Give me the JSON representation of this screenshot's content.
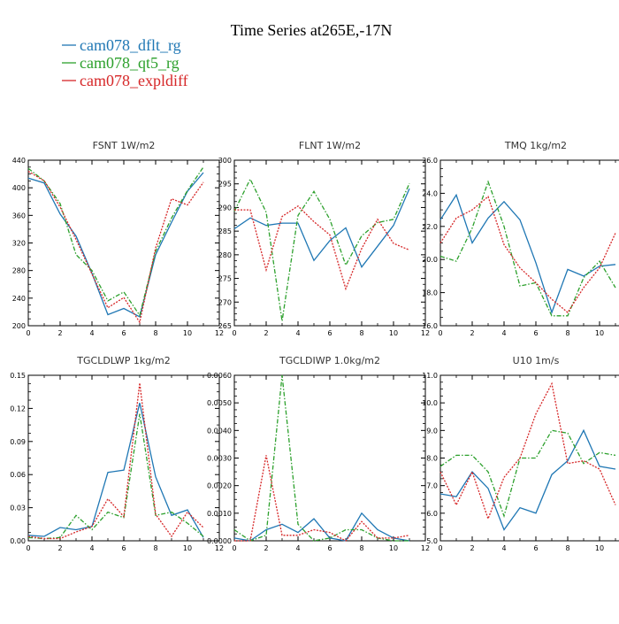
{
  "title": "Time Series at265E,-17N",
  "legend": [
    {
      "label": "cam078_dflt_rg",
      "color": "#1f77b4"
    },
    {
      "label": "cam078_qt5_rg",
      "color": "#2ca02c"
    },
    {
      "label": "cam078_expldiff",
      "color": "#d62728"
    }
  ],
  "chart_data": [
    {
      "type": "line",
      "title": "FSNT   1W/m2",
      "x": [
        0,
        1,
        2,
        3,
        4,
        5,
        6,
        7,
        8,
        9,
        10,
        11
      ],
      "xlim": [
        0,
        12
      ],
      "xticks": [
        "0",
        "2",
        "4",
        "6",
        "8",
        "10",
        "12"
      ],
      "ylim": [
        200,
        440
      ],
      "yticks": [
        "200",
        "240",
        "280",
        "320",
        "360",
        "400",
        "440"
      ],
      "series": [
        {
          "name": "cam078_dflt_rg",
          "color": "#1f77b4",
          "dash": "solid",
          "values": [
            414,
            407,
            362,
            330,
            276,
            216,
            225,
            213,
            303,
            350,
            395,
            422
          ]
        },
        {
          "name": "cam078_qt5_rg",
          "color": "#2ca02c",
          "dash": "dashdot",
          "values": [
            428,
            410,
            377,
            303,
            280,
            236,
            249,
            215,
            308,
            356,
            396,
            430
          ]
        },
        {
          "name": "cam078_expldiff",
          "color": "#d62728",
          "dash": "dot",
          "values": [
            424,
            410,
            372,
            325,
            275,
            226,
            241,
            205,
            313,
            384,
            375,
            408
          ]
        }
      ]
    },
    {
      "type": "line",
      "title": "FLNT   1W/m2",
      "x": [
        0,
        1,
        2,
        3,
        4,
        5,
        6,
        7,
        8,
        9,
        10,
        11
      ],
      "xlim": [
        0,
        12
      ],
      "xticks": [
        "0",
        "2",
        "4",
        "6",
        "8",
        "10",
        "12"
      ],
      "ylim": [
        265,
        300
      ],
      "yticks": [
        "265",
        "270",
        "275",
        "280",
        "285",
        "290",
        "295",
        "300"
      ],
      "series": [
        {
          "name": "cam078_dflt_rg",
          "color": "#1f77b4",
          "dash": "solid",
          "values": [
            285.5,
            287.8,
            286.2,
            286.7,
            286.7,
            278.8,
            283.0,
            285.7,
            277.4,
            281.8,
            286.2,
            294.0
          ]
        },
        {
          "name": "cam078_qt5_rg",
          "color": "#2ca02c",
          "dash": "dashdot",
          "values": [
            289.2,
            296.0,
            289.0,
            266.0,
            288.3,
            293.4,
            287.5,
            277.8,
            284.0,
            286.8,
            287.5,
            295.1
          ]
        },
        {
          "name": "cam078_expldiff",
          "color": "#d62728",
          "dash": "dot",
          "values": [
            289.5,
            289.5,
            276.8,
            288.1,
            290.3,
            287.0,
            284.2,
            272.8,
            281.3,
            287.5,
            282.4,
            281.0
          ]
        }
      ]
    },
    {
      "type": "line",
      "title": "TMQ   1kg/m2",
      "x": [
        0,
        1,
        2,
        3,
        4,
        5,
        6,
        7,
        8,
        9,
        10,
        11
      ],
      "xlim": [
        0,
        12
      ],
      "xticks": [
        "0",
        "2",
        "4",
        "6",
        "8",
        "10",
        "12"
      ],
      "ylim": [
        16.0,
        26.0
      ],
      "yticks": [
        "16.0",
        "18.0",
        "20.0",
        "22.0",
        "24.0",
        "26.0"
      ],
      "series": [
        {
          "name": "cam078_dflt_rg",
          "color": "#1f77b4",
          "dash": "solid",
          "values": [
            22.4,
            23.9,
            21.0,
            22.5,
            23.5,
            22.4,
            19.8,
            16.8,
            19.4,
            19.0,
            19.6,
            19.7
          ]
        },
        {
          "name": "cam078_qt5_rg",
          "color": "#2ca02c",
          "dash": "dashdot",
          "values": [
            20.2,
            19.9,
            21.9,
            24.7,
            22.0,
            18.4,
            18.6,
            16.6,
            16.6,
            18.9,
            19.9,
            18.3
          ]
        },
        {
          "name": "cam078_expldiff",
          "color": "#d62728",
          "dash": "dot",
          "values": [
            21.0,
            22.5,
            23.0,
            23.8,
            20.9,
            19.5,
            18.6,
            17.6,
            16.8,
            18.3,
            19.5,
            21.6
          ]
        }
      ]
    },
    {
      "type": "line",
      "title": "TGCLDLWP   1kg/m2",
      "x": [
        0,
        1,
        2,
        3,
        4,
        5,
        6,
        7,
        8,
        9,
        10,
        11
      ],
      "xlim": [
        0,
        12
      ],
      "xticks": [
        "0",
        "2",
        "4",
        "6",
        "8",
        "10",
        "12"
      ],
      "ylim": [
        0,
        0.15
      ],
      "yticks": [
        "0.00",
        "0.03",
        "0.06",
        "0.09",
        "0.12",
        "0.15"
      ],
      "series": [
        {
          "name": "cam078_dflt_rg",
          "color": "#1f77b4",
          "dash": "solid",
          "values": [
            0.005,
            0.004,
            0.012,
            0.01,
            0.013,
            0.062,
            0.064,
            0.125,
            0.058,
            0.023,
            0.028,
            0.003
          ]
        },
        {
          "name": "cam078_qt5_rg",
          "color": "#2ca02c",
          "dash": "dashdot",
          "values": [
            0.003,
            0.002,
            0.003,
            0.023,
            0.01,
            0.026,
            0.021,
            0.115,
            0.023,
            0.026,
            0.016,
            0.004
          ]
        },
        {
          "name": "cam078_expldiff",
          "color": "#d62728",
          "dash": "dot",
          "values": [
            0.004,
            0.002,
            0.002,
            0.008,
            0.013,
            0.038,
            0.022,
            0.143,
            0.024,
            0.004,
            0.026,
            0.012
          ]
        }
      ]
    },
    {
      "type": "line",
      "title": "TGCLDIWP   1.0kg/m2",
      "x": [
        0,
        1,
        2,
        3,
        4,
        5,
        6,
        7,
        8,
        9,
        10,
        11
      ],
      "xlim": [
        0,
        12
      ],
      "xticks": [
        "0",
        "2",
        "4",
        "6",
        "8",
        "10",
        "12"
      ],
      "ylim": [
        0,
        0.006
      ],
      "yticks": [
        "0.0000",
        "0.0010",
        "0.0020",
        "0.0030",
        "0.0040",
        "0.0050",
        "0.0060"
      ],
      "series": [
        {
          "name": "cam078_dflt_rg",
          "color": "#1f77b4",
          "dash": "solid",
          "values": [
            0.0001,
            0.0,
            0.0004,
            0.0006,
            0.0003,
            0.0008,
            0.0001,
            0.0,
            0.001,
            0.0004,
            0.0001,
            0.0
          ]
        },
        {
          "name": "cam078_qt5_rg",
          "color": "#2ca02c",
          "dash": "dashdot",
          "values": [
            0.0004,
            0.0,
            0.0002,
            0.006,
            0.0006,
            0.0,
            0.0001,
            0.0004,
            0.0004,
            0.0001,
            0.0,
            0.0
          ]
        },
        {
          "name": "cam078_expldiff",
          "color": "#d62728",
          "dash": "dot",
          "values": [
            0.0,
            0.0,
            0.0031,
            0.0002,
            0.0002,
            0.0004,
            0.0003,
            0.0,
            0.0007,
            0.0001,
            0.0001,
            0.0002
          ]
        }
      ]
    },
    {
      "type": "line",
      "title": "U10   1m/s",
      "x": [
        0,
        1,
        2,
        3,
        4,
        5,
        6,
        7,
        8,
        9,
        10,
        11
      ],
      "xlim": [
        0,
        12
      ],
      "xticks": [
        "0",
        "2",
        "4",
        "6",
        "8",
        "10",
        "12"
      ],
      "ylim": [
        5.0,
        11.0
      ],
      "yticks": [
        "5.0",
        "6.0",
        "7.0",
        "8.0",
        "9.0",
        "10.0",
        "11.0"
      ],
      "series": [
        {
          "name": "cam078_dflt_rg",
          "color": "#1f77b4",
          "dash": "solid",
          "values": [
            6.7,
            6.6,
            7.5,
            6.9,
            5.4,
            6.2,
            6.0,
            7.4,
            7.9,
            9.0,
            7.7,
            7.6
          ]
        },
        {
          "name": "cam078_qt5_rg",
          "color": "#2ca02c",
          "dash": "dashdot",
          "values": [
            7.7,
            8.1,
            8.1,
            7.5,
            5.9,
            8.0,
            8.0,
            9.0,
            8.9,
            7.8,
            8.2,
            8.1
          ]
        },
        {
          "name": "cam078_expldiff",
          "color": "#d62728",
          "dash": "dot",
          "values": [
            7.5,
            6.3,
            7.5,
            5.8,
            7.3,
            8.0,
            9.6,
            10.7,
            7.8,
            7.9,
            7.6,
            6.3
          ]
        }
      ]
    }
  ]
}
